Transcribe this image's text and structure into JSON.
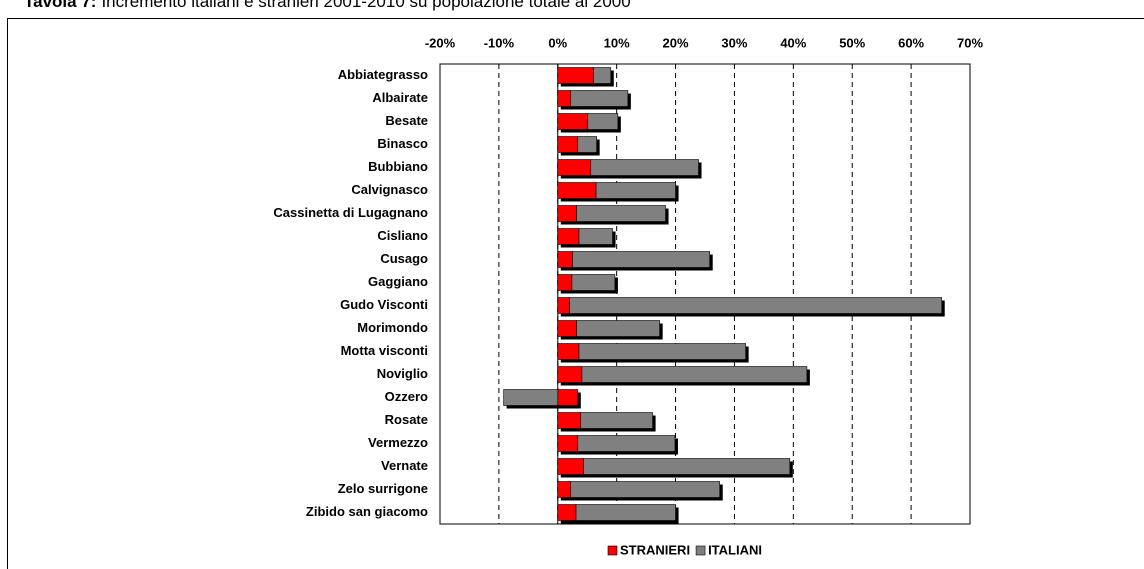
{
  "chart_data": {
    "type": "bar",
    "orientation": "horizontal",
    "stacked": true,
    "title_number": "Tavola 7:",
    "title": "Incremento italiani e stranieri 2001-2010 su popolazione totale al 2000",
    "categories": [
      "Abbiategrasso",
      "Albairate",
      "Besate",
      "Binasco",
      "Bubbiano",
      "Calvignasco",
      "Cassinetta di Lugagnano",
      "Cisliano",
      "Cusago",
      "Gaggiano",
      "Gudo Visconti",
      "Morimondo",
      "Motta visconti",
      "Noviglio",
      "Ozzero",
      "Rosate",
      "Vermezzo",
      "Vernate",
      "Zelo surrigone",
      "Zibido san giacomo"
    ],
    "series": [
      {
        "name": "STRANIERI",
        "color": "#ff0000",
        "values": [
          6.1,
          2.2,
          5.1,
          3.4,
          5.6,
          6.5,
          3.2,
          3.6,
          2.5,
          2.4,
          2.0,
          3.2,
          3.6,
          4.1,
          3.4,
          3.9,
          3.4,
          4.4,
          2.2,
          3.1
        ]
      },
      {
        "name": "ITALIANI",
        "color": "#808080",
        "values": [
          2.9,
          9.7,
          5.1,
          3.2,
          18.3,
          13.5,
          15.1,
          5.7,
          23.3,
          7.3,
          63.2,
          14.1,
          28.3,
          38.2,
          -9.2,
          12.2,
          16.5,
          35.0,
          25.3,
          16.9
        ]
      }
    ],
    "xlim": [
      -20,
      70
    ],
    "xticks": [
      {
        "value": -20,
        "label": "-20%"
      },
      {
        "value": -10,
        "label": "-10%"
      },
      {
        "value": 0,
        "label": "0%"
      },
      {
        "value": 10,
        "label": "10%"
      },
      {
        "value": 20,
        "label": "20%"
      },
      {
        "value": 30,
        "label": "30%"
      },
      {
        "value": 40,
        "label": "40%"
      },
      {
        "value": 50,
        "label": "50%"
      },
      {
        "value": 60,
        "label": "60%"
      },
      {
        "value": 70,
        "label": "70%"
      }
    ],
    "grid": true,
    "legend": "bottom"
  }
}
